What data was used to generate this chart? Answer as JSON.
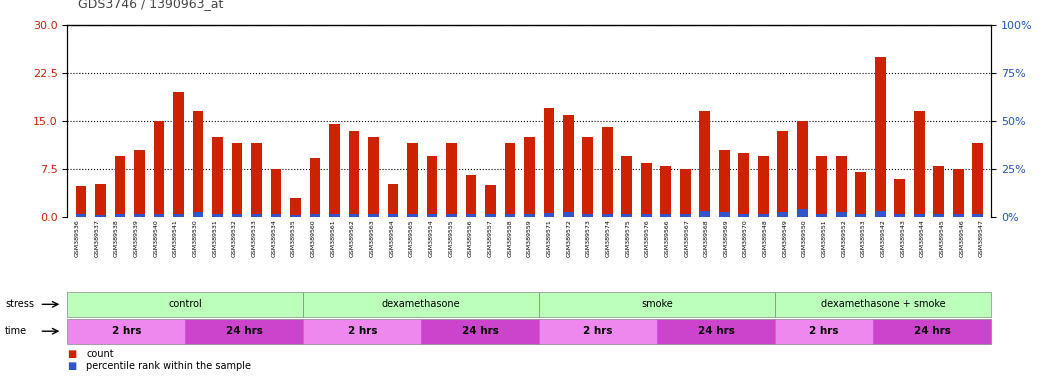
{
  "title": "GDS3746 / 1390963_at",
  "samples": [
    "GSM389536",
    "GSM389537",
    "GSM389538",
    "GSM389539",
    "GSM389540",
    "GSM389541",
    "GSM389530",
    "GSM389531",
    "GSM389532",
    "GSM389533",
    "GSM389534",
    "GSM389535",
    "GSM389560",
    "GSM389561",
    "GSM389562",
    "GSM389563",
    "GSM389564",
    "GSM389565",
    "GSM389554",
    "GSM389555",
    "GSM389556",
    "GSM389557",
    "GSM389558",
    "GSM389559",
    "GSM389571",
    "GSM389572",
    "GSM389573",
    "GSM389574",
    "GSM389575",
    "GSM389576",
    "GSM389566",
    "GSM389567",
    "GSM389568",
    "GSM389569",
    "GSM389570",
    "GSM389548",
    "GSM389549",
    "GSM389550",
    "GSM389551",
    "GSM389552",
    "GSM389553",
    "GSM389542",
    "GSM389543",
    "GSM389544",
    "GSM389545",
    "GSM389546",
    "GSM389547"
  ],
  "count_values": [
    4.8,
    5.2,
    9.5,
    10.5,
    15.0,
    19.5,
    16.5,
    12.5,
    11.5,
    11.5,
    7.5,
    3.0,
    9.2,
    14.5,
    13.5,
    12.5,
    5.2,
    11.5,
    9.5,
    11.5,
    6.5,
    5.0,
    11.5,
    12.5,
    17.0,
    16.0,
    12.5,
    14.0,
    9.5,
    8.5,
    8.0,
    7.5,
    16.5,
    10.5,
    10.0,
    9.5,
    13.5,
    15.0,
    9.5,
    9.5,
    7.0,
    25.0,
    6.0,
    16.5,
    8.0,
    7.5,
    11.5
  ],
  "percentile_values": [
    0.4,
    0.3,
    0.4,
    0.4,
    0.5,
    0.5,
    0.7,
    0.5,
    0.5,
    0.5,
    0.4,
    0.3,
    0.5,
    0.5,
    0.5,
    0.5,
    0.4,
    0.5,
    0.5,
    0.5,
    0.5,
    0.4,
    0.5,
    0.5,
    0.6,
    0.8,
    0.5,
    0.5,
    0.5,
    0.5,
    0.4,
    0.5,
    1.0,
    0.7,
    0.5,
    0.5,
    0.7,
    1.3,
    0.5,
    0.7,
    0.4,
    1.0,
    0.5,
    0.5,
    0.5,
    0.5,
    0.5
  ],
  "ylim_left": [
    0,
    30
  ],
  "ylim_right": [
    0,
    100
  ],
  "yticks_left": [
    0,
    7.5,
    15,
    22.5,
    30
  ],
  "yticks_right": [
    0,
    25,
    50,
    75,
    100
  ],
  "bar_color_red": "#cc2200",
  "bar_color_blue": "#3355cc",
  "title_color": "#333333",
  "right_axis_color": "#2255bb",
  "stress_groups": [
    {
      "label": "control",
      "start": 0,
      "end": 12,
      "color": "#bbffbb"
    },
    {
      "label": "dexamethasone",
      "start": 12,
      "end": 24,
      "color": "#bbffbb"
    },
    {
      "label": "smoke",
      "start": 24,
      "end": 36,
      "color": "#bbffbb"
    },
    {
      "label": "dexamethasone + smoke",
      "start": 36,
      "end": 47,
      "color": "#bbffbb"
    }
  ],
  "time_groups": [
    {
      "label": "2 hrs",
      "start": 0,
      "end": 6,
      "color": "#ee88ee"
    },
    {
      "label": "24 hrs",
      "start": 6,
      "end": 12,
      "color": "#cc44cc"
    },
    {
      "label": "2 hrs",
      "start": 12,
      "end": 18,
      "color": "#ee88ee"
    },
    {
      "label": "24 hrs",
      "start": 18,
      "end": 24,
      "color": "#cc44cc"
    },
    {
      "label": "2 hrs",
      "start": 24,
      "end": 30,
      "color": "#ee88ee"
    },
    {
      "label": "24 hrs",
      "start": 30,
      "end": 36,
      "color": "#cc44cc"
    },
    {
      "label": "2 hrs",
      "start": 36,
      "end": 41,
      "color": "#ee88ee"
    },
    {
      "label": "24 hrs",
      "start": 41,
      "end": 47,
      "color": "#cc44cc"
    }
  ]
}
